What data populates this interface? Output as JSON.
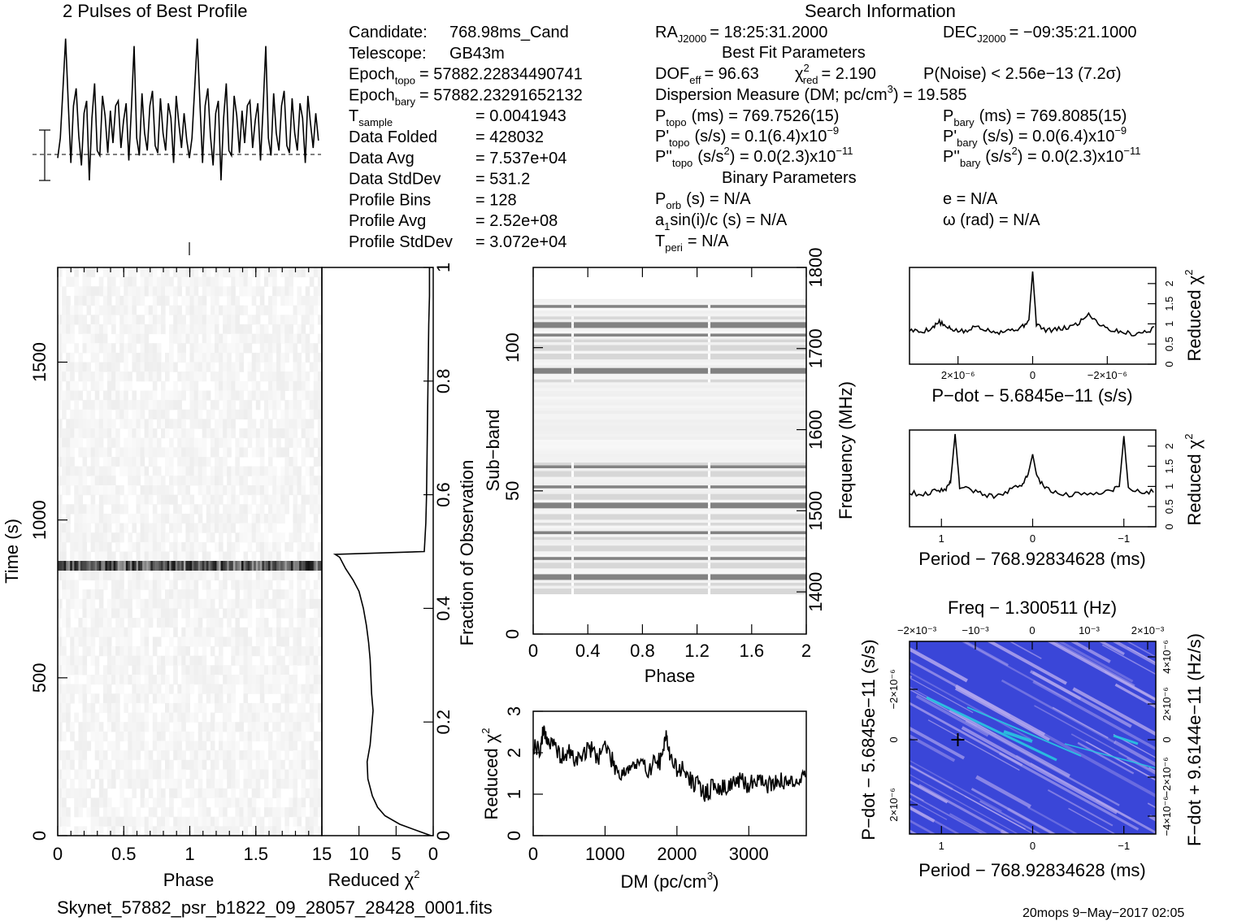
{
  "header": {
    "profile_title": "2 Pulses of Best Profile",
    "search_title": "Search Information"
  },
  "info_left": [
    {
      "label": "Candidate:",
      "value": "768.98ms_Cand"
    },
    {
      "label": "Telescope:",
      "value": "GB43m"
    },
    {
      "label": "Epoch",
      "sub": "topo",
      "value": "= 57882.22834490741"
    },
    {
      "label": "Epoch",
      "sub": "bary",
      "value": "= 57882.23291652132"
    },
    {
      "label": "T",
      "sub": "sample",
      "value": "=  0.0041943"
    },
    {
      "label": "Data Folded",
      "value": "=  428032"
    },
    {
      "label": "Data Avg",
      "value": "=  7.537e+04"
    },
    {
      "label": "Data StdDev",
      "value": "=  531.2"
    },
    {
      "label": "Profile Bins",
      "value": "=  128"
    },
    {
      "label": "Profile Avg",
      "value": "=  2.52e+08"
    },
    {
      "label": "Profile StdDev",
      "value": "=  3.072e+04"
    }
  ],
  "info_mid": {
    "ra": "RA",
    "ra_sub": "J2000",
    "ra_value": "= 18:25:31.2000",
    "dec": "DEC",
    "dec_sub": "J2000",
    "dec_value": "= −09:35:21.1000",
    "best_fit_title": "Best Fit Parameters",
    "dof_label": "DOF",
    "dof_sub": "eff",
    "dof_value": "= 96.63",
    "chi2_label": "χ",
    "chi2_sup": "2",
    "chi2_sub": "red",
    "chi2_value": "= 2.190",
    "pnoise": "P(Noise) < 2.56e−13   (7.2σ)",
    "dm_line_a": "Dispersion Measure (DM; pc/cm",
    "dm_line_sup": "3",
    "dm_line_b": ") = 19.585",
    "ptopo_label": "P",
    "ptopo_sub": "topo",
    "ptopo_value": "(ms) =  769.7526(15)",
    "pbary_label": "P",
    "pbary_sub": "bary",
    "pbary_value": "(ms) =  769.8085(15)",
    "pdtopo_label": "P'",
    "pdtopo_sub": "topo",
    "pdtopo_value": "(s/s) =  0.1(6.4)x10",
    "pdtopo_exp": "−9",
    "pdbary_label": "P'",
    "pdbary_sub": "bary",
    "pdbary_value": "(s/s) = 0.0(6.4)x10",
    "pdbary_exp": "−9",
    "pddtopo_label": "P''",
    "pddtopo_sub": "topo",
    "pddtopo_value": "(s/s",
    "pddtopo_sup2": "2",
    "pddtopo_value2": ") = 0.0(2.3)x10",
    "pddtopo_exp": "−11",
    "pddbary_label": "P''",
    "pddbary_sub": "bary",
    "pddbary_value": "(s/s",
    "pddbary_sup2": "2",
    "pddbary_value2": ") = 0.0(2.3)x10",
    "pddbary_exp": "−11",
    "binary_title": "Binary Parameters",
    "porb_label": "P",
    "porb_sub": "orb",
    "porb_value": "(s) = N/A",
    "e_value": "e = N/A",
    "a1_label": "a",
    "a1_sub": "1",
    "a1_value": "sin(i)/c (s) = N/A",
    "omega_value": "ω (rad) = N/A",
    "tperi_label": "T",
    "tperi_sub": "peri",
    "tperi_value": "= N/A"
  },
  "footer": {
    "filename": "Skynet_57882_psr_b1822_09_28057_28428_0001.fits",
    "stamp": "20mops   9−May−2017 02:05"
  },
  "chart_data": [
    {
      "id": "profile",
      "type": "line",
      "title": "2 Pulses of Best Profile",
      "x": [
        0,
        0.02,
        0.04,
        0.06,
        0.08,
        0.1,
        0.12,
        0.14,
        0.16,
        0.18,
        0.2,
        0.22,
        0.24,
        0.26,
        0.28,
        0.3,
        0.32,
        0.34,
        0.36,
        0.38,
        0.4,
        0.42,
        0.44,
        0.46,
        0.48,
        0.5,
        0.52,
        0.54,
        0.56,
        0.58,
        0.6,
        0.62,
        0.64,
        0.66,
        0.68,
        0.7,
        0.72,
        0.74,
        0.76,
        0.78,
        0.8,
        0.82,
        0.84,
        0.86,
        0.88,
        0.9,
        0.92,
        0.94,
        0.96,
        0.98,
        1.0,
        1.02,
        1.04,
        1.06,
        1.08,
        1.1,
        1.12,
        1.14,
        1.16,
        1.18,
        1.2,
        1.22,
        1.24,
        1.26,
        1.28,
        1.3,
        1.32,
        1.34,
        1.36,
        1.38,
        1.4,
        1.42,
        1.44,
        1.46,
        1.48,
        1.5,
        1.52,
        1.54,
        1.56,
        1.58,
        1.6,
        1.62,
        1.64,
        1.66,
        1.68,
        1.7,
        1.72,
        1.74,
        1.76,
        1.78,
        1.8,
        1.82,
        1.84,
        1.86,
        1.88,
        1.9,
        1.92,
        1.94,
        1.96,
        1.98
      ],
      "values": [
        -1.2,
        -0.4,
        1.6,
        3.6,
        1.0,
        -1.4,
        0.9,
        1.6,
        -0.3,
        -1.5,
        0.6,
        1.1,
        -2.1,
        0.4,
        1.8,
        -0.9,
        -1.1,
        1.3,
        0.5,
        -1.0,
        0.7,
        -0.6,
        0.9,
        1.1,
        -0.8,
        0.3,
        1.0,
        -1.3,
        0.8,
        3.3,
        -0.4,
        -1.1,
        1.4,
        -0.2,
        -0.9,
        0.9,
        1.5,
        -0.7,
        -1.0,
        1.2,
        -0.2,
        -0.9,
        1.0,
        0.4,
        -1.4,
        1.3,
        0.2,
        -0.8,
        0.6,
        -0.5,
        -1.2,
        -0.4,
        1.6,
        3.6,
        1.0,
        -1.4,
        0.9,
        1.6,
        -0.3,
        -1.5,
        0.6,
        1.1,
        -2.1,
        0.4,
        1.8,
        -0.9,
        -1.1,
        1.3,
        0.5,
        -1.0,
        0.7,
        -0.6,
        0.9,
        1.1,
        -0.8,
        0.3,
        1.0,
        -1.3,
        0.8,
        3.3,
        -0.4,
        -1.1,
        1.4,
        -0.2,
        -0.9,
        0.9,
        1.5,
        -0.7,
        -1.0,
        1.2,
        -0.2,
        -0.9,
        1.0,
        0.4,
        -1.4,
        1.3,
        0.2,
        -0.8,
        0.6,
        -0.5
      ],
      "xlim": [
        0,
        2
      ],
      "ylim": [
        -4,
        4.5
      ]
    },
    {
      "id": "time-phase",
      "type": "heatmap",
      "xlabel": "Phase",
      "ylabel": "Time (s)",
      "xlim": [
        0,
        2
      ],
      "ylim": [
        0,
        1800
      ],
      "x_ticks": [
        "0",
        "0.5",
        "1",
        "1.5"
      ],
      "x_tick_values": [
        0,
        0.5,
        1,
        1.5
      ],
      "y_ticks": [
        "0",
        "500",
        "1000",
        "1500"
      ],
      "y_tick_values": [
        0,
        500,
        1000,
        1500
      ],
      "bright_rows_time": [
        855
      ]
    },
    {
      "id": "reduced-chi2-time",
      "type": "line",
      "xlabel": "Reduced χ",
      "xlabel_sup": "2",
      "ylabel": "Fraction of Observation",
      "xlim": [
        15,
        0
      ],
      "ylim": [
        0,
        1
      ],
      "x_ticks": [
        "15",
        "10",
        "5",
        "0"
      ],
      "x_tick_values": [
        15,
        10,
        5,
        0
      ],
      "y_ticks": [
        "0",
        "0.2",
        "0.4",
        "0.6",
        "0.8",
        "1"
      ],
      "y_tick_values": [
        0,
        0.2,
        0.4,
        0.6,
        0.8,
        1
      ],
      "chi2": [
        0.3,
        2.0,
        4.5,
        6.5,
        7.5,
        8.2,
        8.8,
        8.9,
        8.5,
        8.3,
        8.1,
        8.3,
        8.4,
        8.5,
        8.7,
        9.0,
        9.4,
        10.0,
        10.8,
        11.8,
        12.6,
        13.2,
        1.2,
        1.0,
        0.9,
        0.8,
        0.7,
        0.6,
        0.5,
        0.5
      ],
      "fraction": [
        0.0,
        0.008,
        0.02,
        0.035,
        0.05,
        0.07,
        0.1,
        0.13,
        0.16,
        0.19,
        0.22,
        0.25,
        0.28,
        0.31,
        0.34,
        0.37,
        0.4,
        0.43,
        0.45,
        0.47,
        0.49,
        0.495,
        0.5,
        0.55,
        0.6,
        0.7,
        0.8,
        0.9,
        0.95,
        1.0
      ]
    },
    {
      "id": "subband-phase",
      "type": "heatmap",
      "xlabel": "Phase",
      "ylabel": "Sub−band",
      "ylabel_right": "Frequency (MHz)",
      "xlim": [
        0,
        2
      ],
      "ylim": [
        0,
        128
      ],
      "x_ticks": [
        "0",
        "0.4",
        "0.8",
        "1.2",
        "1.6",
        "2"
      ],
      "x_tick_values": [
        0,
        0.4,
        0.8,
        1.2,
        1.6,
        2
      ],
      "y_ticks": [
        "0",
        "50",
        "100"
      ],
      "y_tick_values": [
        0,
        50,
        100
      ],
      "y_right_ticks": [
        "1400",
        "1500",
        "1600",
        "1700",
        "1800"
      ],
      "y_right_tick_values": [
        1400,
        1500,
        1600,
        1700,
        1800
      ],
      "y_right_lim": [
        1348,
        1800
      ],
      "dark_subbands": [
        19,
        20,
        26,
        35,
        44,
        45,
        51,
        58,
        91,
        92,
        104,
        107,
        108,
        114
      ],
      "light_subbands": [
        14,
        15,
        17,
        23,
        24,
        29,
        30,
        33,
        38,
        40,
        41,
        47,
        48,
        55,
        56,
        59,
        88,
        96,
        97,
        99,
        100,
        102,
        110
      ],
      "data_range": [
        14,
        116
      ]
    },
    {
      "id": "chi2-dm",
      "type": "line",
      "xlabel": "DM (pc/cm",
      "xlabel_sup": "3",
      "xlabel_end": ")",
      "ylabel": "Reduced χ",
      "ylabel_sup": "2",
      "xlim": [
        0,
        3800
      ],
      "ylim": [
        0,
        3
      ],
      "x_ticks": [
        "0",
        "1000",
        "2000",
        "3000"
      ],
      "x_tick_values": [
        0,
        1000,
        2000,
        3000
      ],
      "y_ticks": [
        "0",
        "1",
        "2",
        "3"
      ],
      "y_tick_values": [
        0,
        1,
        2,
        3
      ],
      "x": [
        0,
        100,
        150,
        200,
        300,
        400,
        500,
        600,
        700,
        800,
        900,
        1000,
        1100,
        1200,
        1300,
        1400,
        1500,
        1600,
        1700,
        1800,
        1850,
        1900,
        2000,
        2100,
        2200,
        2300,
        2400,
        2500,
        2600,
        2700,
        2800,
        2900,
        3000,
        3100,
        3200,
        3300,
        3400,
        3500,
        3600,
        3700,
        3800
      ],
      "y": [
        2.2,
        2.1,
        2.6,
        2.3,
        2.1,
        1.9,
        2.0,
        1.8,
        2.0,
        2.1,
        1.9,
        2.2,
        1.8,
        1.5,
        1.6,
        1.7,
        1.7,
        1.6,
        1.8,
        1.8,
        2.6,
        1.9,
        1.6,
        1.6,
        1.3,
        1.2,
        1.0,
        1.2,
        1.1,
        1.2,
        1.3,
        1.3,
        1.2,
        1.4,
        1.3,
        1.2,
        1.4,
        1.2,
        1.4,
        1.3,
        1.5
      ]
    },
    {
      "id": "chi2-pdot",
      "type": "line",
      "xlabel": "P−dot − 5.6845e−11 (s/s)",
      "ylabel": "Reduced χ",
      "ylabel_sup": "2",
      "xlim": [
        3.3e-06,
        -3.3e-06
      ],
      "ylim": [
        0,
        2.4
      ],
      "x_ticks": [
        "2×10⁻⁶",
        "0",
        "−2×10⁻⁶"
      ],
      "x_tick_values": [
        2e-06,
        0,
        -2e-06
      ],
      "y_ticks": [
        "0",
        "0.5",
        "1",
        "1.5",
        "2"
      ],
      "y_tick_values": [
        0,
        0.5,
        1,
        1.5,
        2
      ],
      "x": [
        3.3e-06,
        3e-06,
        2.7e-06,
        2.5e-06,
        2.3e-06,
        2.1e-06,
        1.8e-06,
        1.5e-06,
        1.2e-06,
        9e-07,
        6e-07,
        3e-07,
        1e-07,
        0.0,
        -1e-07,
        -3e-07,
        -6e-07,
        -9e-07,
        -1.2e-06,
        -1.5e-06,
        -1.8e-06,
        -2.1e-06,
        -2.4e-06,
        -2.7e-06,
        -3e-06,
        -3.3e-06
      ],
      "y": [
        0.85,
        0.8,
        0.9,
        1.05,
        0.9,
        0.85,
        0.8,
        0.95,
        0.85,
        0.8,
        0.85,
        0.9,
        1.1,
        2.3,
        1.0,
        0.85,
        0.85,
        0.9,
        1.0,
        1.25,
        1.0,
        0.85,
        0.8,
        0.75,
        0.8,
        0.9
      ]
    },
    {
      "id": "chi2-period",
      "type": "line",
      "xlabel": "Period − 768.92834628 (ms)",
      "ylabel": "Reduced χ",
      "ylabel_sup": "2",
      "xlim": [
        1.35,
        -1.35
      ],
      "ylim": [
        0,
        2.4
      ],
      "x_ticks": [
        "1",
        "0",
        "−1"
      ],
      "x_tick_values": [
        1,
        0,
        -1
      ],
      "y_ticks": [
        "0",
        "0.5",
        "1",
        "1.5",
        "2"
      ],
      "y_tick_values": [
        0,
        0.5,
        1,
        1.5,
        2
      ],
      "x": [
        1.35,
        1.2,
        1.05,
        0.95,
        0.9,
        0.85,
        0.8,
        0.7,
        0.55,
        0.4,
        0.25,
        0.12,
        0.05,
        0.0,
        -0.05,
        -0.15,
        -0.3,
        -0.5,
        -0.7,
        -0.85,
        -0.95,
        -1.0,
        -1.05,
        -1.2,
        -1.35
      ],
      "y": [
        0.85,
        0.8,
        0.9,
        0.95,
        1.1,
        2.3,
        1.0,
        0.95,
        0.8,
        0.75,
        0.9,
        1.05,
        1.3,
        1.8,
        1.2,
        0.95,
        0.8,
        0.8,
        0.85,
        0.9,
        1.0,
        2.25,
        0.95,
        0.85,
        0.9
      ]
    },
    {
      "id": "pdot-period-map",
      "type": "heatmap",
      "title": "Freq − 1.300511 (Hz)",
      "xlabel": "Period − 768.92834628 (ms)",
      "ylabel": "P−dot − 5.6845e−11 (s/s)",
      "ylabel_right": "F−dot + 9.6144e−11 (Hz/s)",
      "xlim": [
        1.35,
        -1.35
      ],
      "x_ticks": [
        "1",
        "0",
        "−1"
      ],
      "x_tick_values": [
        1,
        0,
        -1
      ],
      "top_ticks": [
        "−2×10⁻³",
        "−10⁻³",
        "0",
        "10⁻³",
        "2×10⁻³"
      ],
      "top_tick_values": [
        -0.002,
        -0.001,
        0,
        0.001,
        0.002
      ],
      "left_ticks": [
        "−2×10⁻⁶",
        "0",
        "2×10⁻⁶"
      ],
      "left_tick_values": [
        -2e-06,
        0,
        2e-06
      ],
      "right_ticks": [
        "−4×10⁻⁶",
        "−2×10⁻⁶",
        "0",
        "2×10⁻⁶",
        "4×10⁻⁶"
      ],
      "right_tick_values": [
        -4e-06,
        -2e-06,
        0,
        2e-06,
        4e-06
      ],
      "best_fit_marker": {
        "period": 0.82,
        "pdot": 0.0
      },
      "colors": {
        "background": "#3a46d8",
        "streak": "#b4a8ee",
        "hot": "#29c6e0"
      }
    }
  ]
}
